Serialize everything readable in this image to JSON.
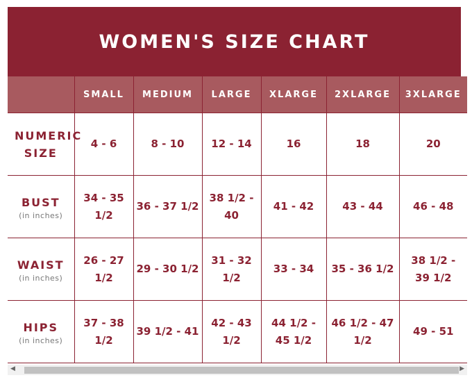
{
  "title": "WOMEN'S SIZE CHART",
  "columns": [
    "",
    "SMALL",
    "MEDIUM",
    "LARGE",
    "XLARGE",
    "2XLARGE",
    "3XLARGE"
  ],
  "rows": [
    {
      "label": "NUMERIC SIZE",
      "sub": "",
      "values": [
        "4 - 6",
        "8 - 10",
        "12 - 14",
        "16",
        "18",
        "20"
      ]
    },
    {
      "label": "BUST",
      "sub": "(in inches)",
      "values": [
        "34 - 35 1/2",
        "36 - 37 1/2",
        "38 1/2 - 40",
        "41 - 42",
        "43 - 44",
        "46 - 48"
      ]
    },
    {
      "label": "WAIST",
      "sub": "(in inches)",
      "values": [
        "26 - 27 1/2",
        "29 - 30 1/2",
        "31 - 32 1/2",
        "33 - 34",
        "35 - 36 1/2",
        "38 1/2 - 39 1/2"
      ]
    },
    {
      "label": "HIPS",
      "sub": "(in inches)",
      "values": [
        "37 - 38 1/2",
        "39 1/2 - 41",
        "42 - 43 1/2",
        "44 1/2 - 45 1/2",
        "46 1/2 - 47 1/2",
        "49 - 51"
      ]
    }
  ],
  "colors": {
    "title_bg": "#8b2232",
    "header_bg": "#a85a5f",
    "text": "#8b2232"
  },
  "scrollbar": {
    "left_icon": "arrow-left-icon",
    "right_icon": "arrow-right-icon"
  }
}
